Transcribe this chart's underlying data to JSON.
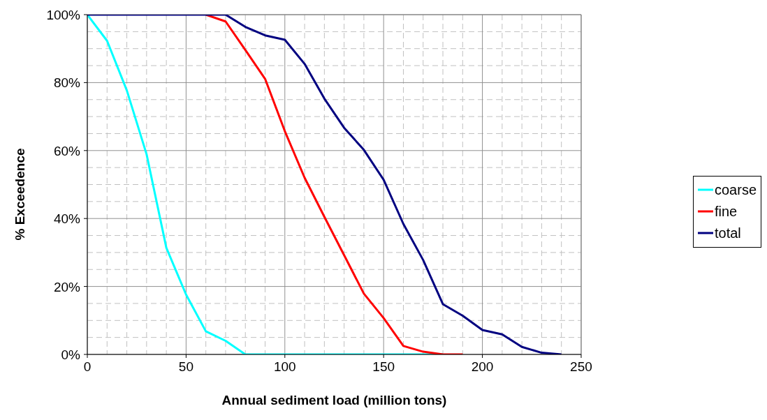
{
  "chart_data": {
    "type": "line",
    "xlabel": "Annual sediment load (million tons)",
    "ylabel": "% Exceedence",
    "x": [
      0,
      10,
      20,
      30,
      40,
      50,
      60,
      70,
      80,
      90,
      100,
      110,
      120,
      130,
      140,
      150,
      160,
      170,
      180,
      190,
      200,
      210,
      220,
      230,
      240
    ],
    "series": [
      {
        "name": "coarse",
        "color": "#00ffff",
        "values": [
          100,
          92.3,
          77.7,
          58.9,
          31.4,
          17.6,
          6.8,
          4,
          0,
          0,
          0,
          0,
          0,
          0,
          0,
          0,
          0,
          0,
          0,
          null,
          null,
          null,
          null,
          null,
          null
        ]
      },
      {
        "name": "fine",
        "color": "#ff0000",
        "values": [
          null,
          null,
          null,
          null,
          null,
          null,
          100,
          98,
          89.6,
          81.1,
          65.7,
          52,
          40.5,
          29.2,
          17.9,
          10.7,
          2.5,
          0.8,
          0,
          0,
          null,
          null,
          null,
          null,
          null
        ]
      },
      {
        "name": "total",
        "color": "#000080",
        "values": [
          100,
          100,
          100,
          100,
          100,
          100,
          100,
          100,
          96.4,
          93.9,
          92.6,
          85.5,
          75.3,
          66.7,
          60.2,
          51.4,
          38.4,
          27.8,
          14.8,
          11.4,
          7.2,
          5.9,
          2.2,
          0.5,
          0
        ]
      }
    ],
    "xlim": [
      0,
      250
    ],
    "xticks": [
      0,
      {
        "value": 10,
        "label": null
      },
      {
        "value": 20,
        "label": null
      },
      {
        "value": 30,
        "label": null
      },
      {
        "value": 40,
        "label": null
      },
      50,
      {
        "value": 60,
        "label": null
      },
      {
        "value": 70,
        "label": null
      },
      {
        "value": 80,
        "label": null
      },
      {
        "value": 90,
        "label": null
      },
      100,
      {
        "value": 110,
        "label": null
      },
      {
        "value": 120,
        "label": null
      },
      {
        "value": 130,
        "label": null
      },
      {
        "value": 140,
        "label": null
      },
      150,
      {
        "value": 160,
        "label": null
      },
      {
        "value": 170,
        "label": null
      },
      {
        "value": 180,
        "label": null
      },
      {
        "value": 190,
        "label": null
      },
      200,
      {
        "value": 210,
        "label": null
      },
      {
        "value": 220,
        "label": null
      },
      {
        "value": 230,
        "label": null
      },
      {
        "value": 240,
        "label": null
      },
      250
    ],
    "ylim": [
      0,
      100
    ],
    "yticks": [
      {
        "value": 0,
        "label": "0%"
      },
      {
        "value": 5,
        "label": null
      },
      {
        "value": 10,
        "label": null
      },
      {
        "value": 15,
        "label": null
      },
      {
        "value": 20,
        "label": "20%"
      },
      {
        "value": 25,
        "label": null
      },
      {
        "value": 30,
        "label": null
      },
      {
        "value": 35,
        "label": null
      },
      {
        "value": 40,
        "label": "40%"
      },
      {
        "value": 45,
        "label": null
      },
      {
        "value": 50,
        "label": null
      },
      {
        "value": 55,
        "label": null
      },
      {
        "value": 60,
        "label": "60%"
      },
      {
        "value": 65,
        "label": null
      },
      {
        "value": 70,
        "label": null
      },
      {
        "value": 75,
        "label": null
      },
      {
        "value": 80,
        "label": "80%"
      },
      {
        "value": 85,
        "label": null
      },
      {
        "value": 90,
        "label": null
      },
      {
        "value": 95,
        "label": null
      },
      {
        "value": 100,
        "label": "100%"
      }
    ],
    "grid": true,
    "legend": "right",
    "marker": "none",
    "line_style": "solid"
  }
}
